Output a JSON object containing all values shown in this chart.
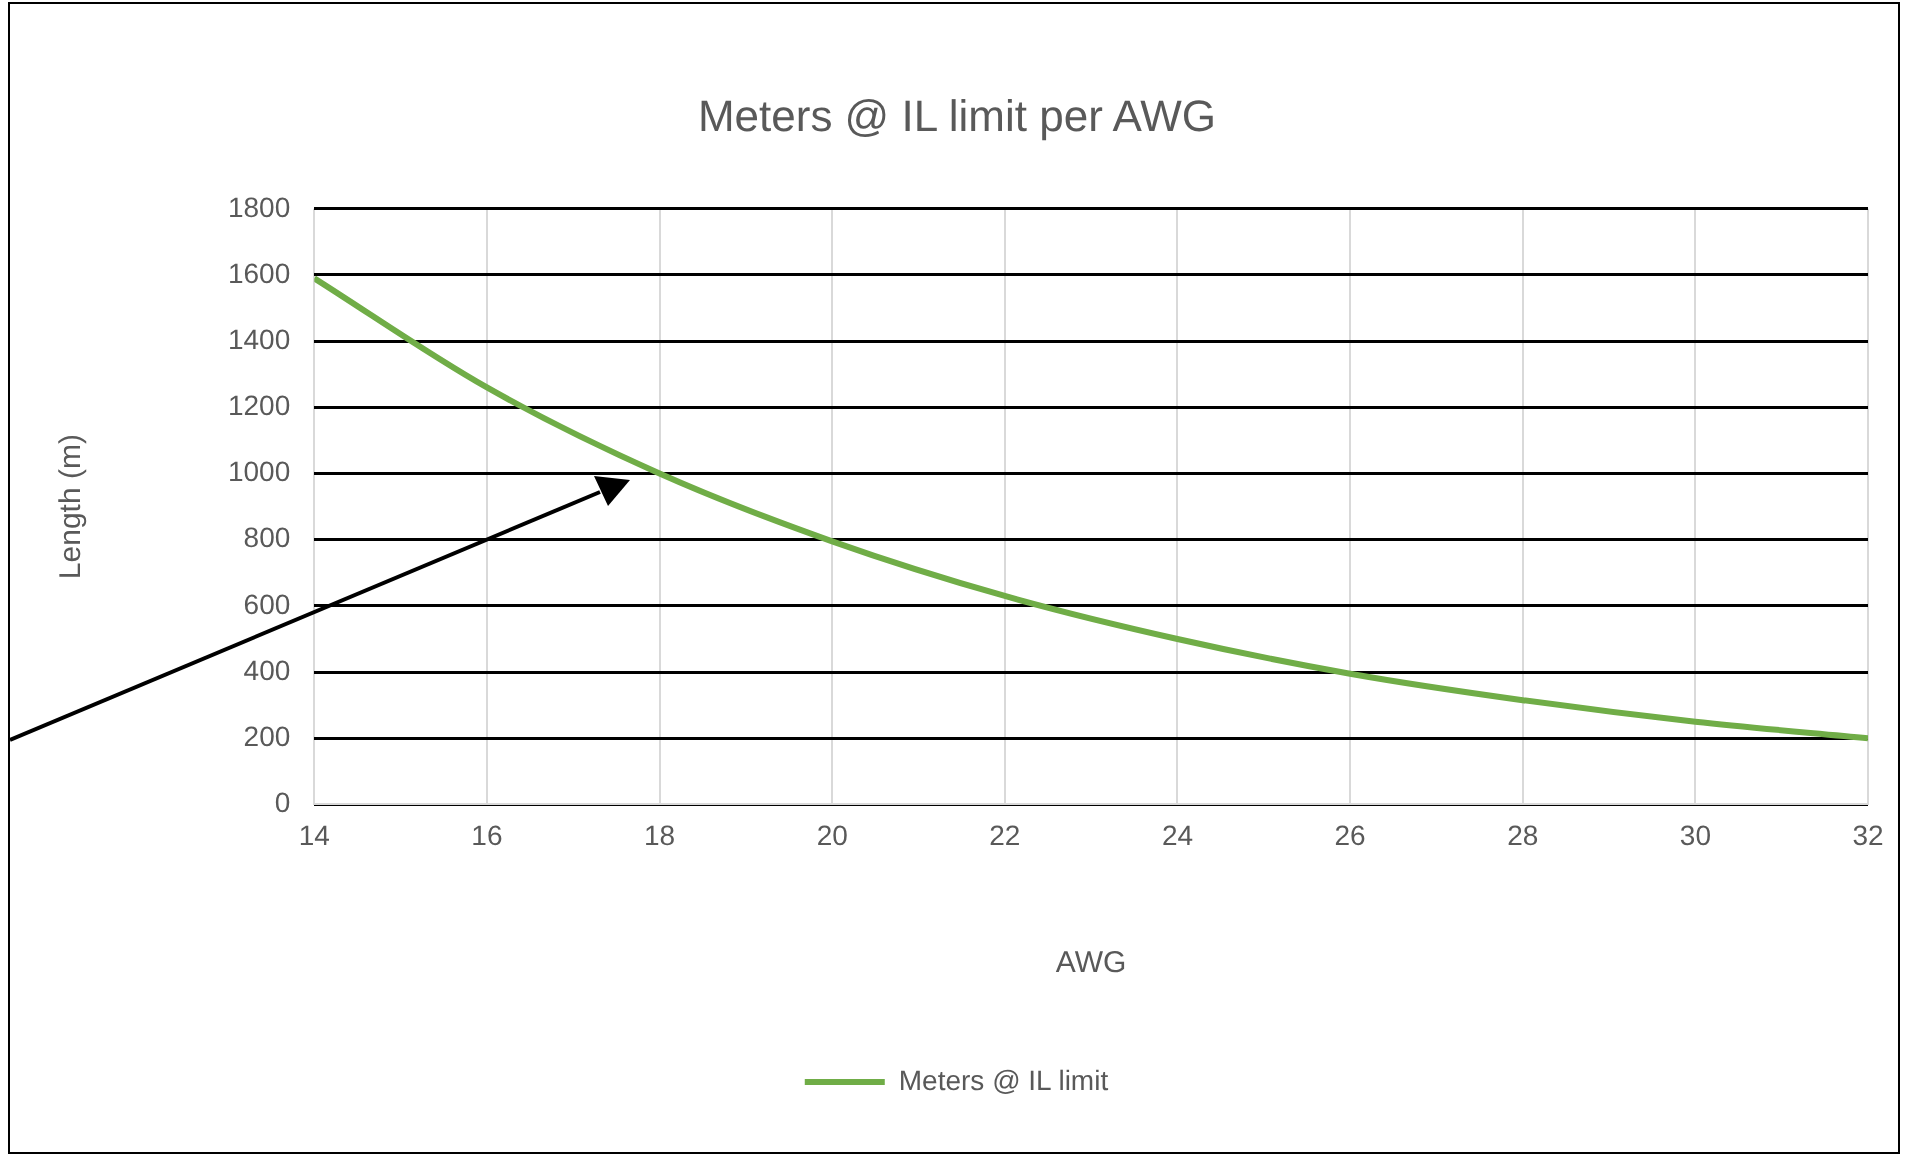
{
  "chart_data": {
    "type": "line",
    "title": "Meters @ IL limit per AWG",
    "xlabel": "AWG",
    "ylabel": "Length (m)",
    "x": [
      14,
      16,
      18,
      20,
      22,
      24,
      26,
      28,
      30,
      32
    ],
    "series": [
      {
        "name": "Meters @ IL limit",
        "color": "#70ad47",
        "values": [
          1590,
          1260,
          1000,
          795,
          630,
          500,
          395,
          315,
          250,
          200
        ]
      }
    ],
    "xlim": [
      14,
      32
    ],
    "xticks": [
      14,
      16,
      18,
      20,
      22,
      24,
      26,
      28,
      30,
      32
    ],
    "ylim": [
      0,
      1800
    ],
    "yticks": [
      0,
      200,
      400,
      600,
      800,
      1000,
      1200,
      1400,
      1600,
      1800
    ],
    "grid": true,
    "legend": "bottom",
    "marker": "none",
    "line_style": "solid"
  }
}
